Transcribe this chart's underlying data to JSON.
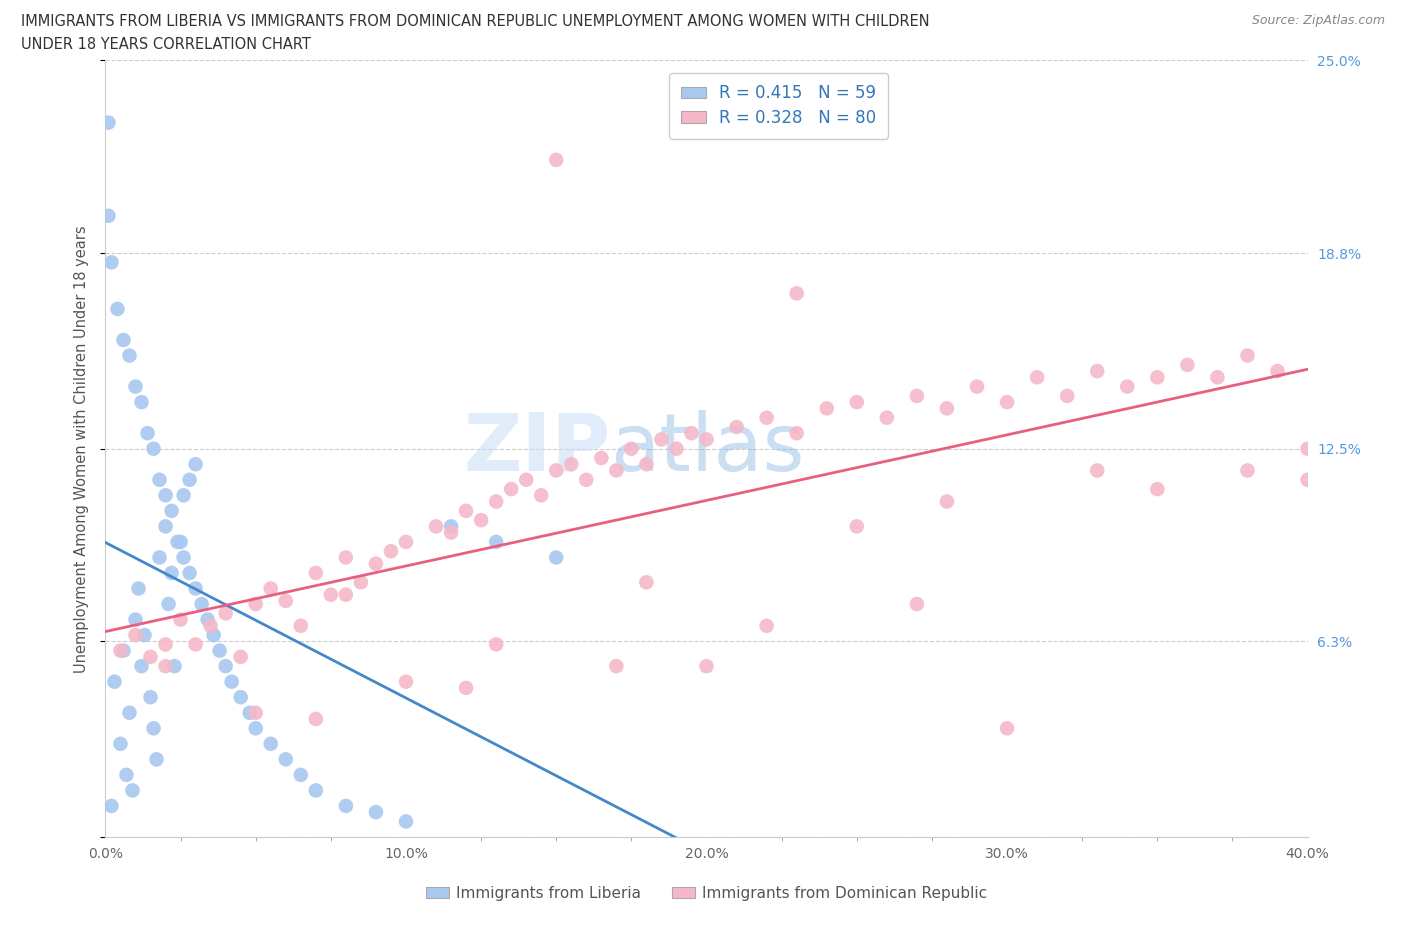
{
  "title_line1": "IMMIGRANTS FROM LIBERIA VS IMMIGRANTS FROM DOMINICAN REPUBLIC UNEMPLOYMENT AMONG WOMEN WITH CHILDREN",
  "title_line2": "UNDER 18 YEARS CORRELATION CHART",
  "source": "Source: ZipAtlas.com",
  "xlabel_bottom": "Immigrants from Liberia",
  "xlabel_bottom2": "Immigrants from Dominican Republic",
  "ylabel": "Unemployment Among Women with Children Under 18 years",
  "xlim": [
    0.0,
    0.4
  ],
  "ylim": [
    0.0,
    0.25
  ],
  "yticks": [
    0.0,
    0.063,
    0.125,
    0.188,
    0.25
  ],
  "ytick_labels": [
    "",
    "6.3%",
    "12.5%",
    "18.8%",
    "25.0%"
  ],
  "xticks": [
    0.0,
    0.1,
    0.2,
    0.3,
    0.4
  ],
  "xtick_labels": [
    "0.0%",
    "10.0%",
    "20.0%",
    "30.0%",
    "40.0%"
  ],
  "liberia_color": "#a8c8f0",
  "dominican_color": "#f4b8c8",
  "liberia_line_color": "#4488cc",
  "dominican_line_color": "#e86080",
  "dashed_line_color": "#aaaaaa",
  "R_liberia": 0.415,
  "N_liberia": 59,
  "R_dominican": 0.328,
  "N_dominican": 80,
  "liberia_x": [
    0.001,
    0.002,
    0.003,
    0.005,
    0.006,
    0.007,
    0.008,
    0.009,
    0.01,
    0.011,
    0.012,
    0.013,
    0.015,
    0.016,
    0.017,
    0.018,
    0.02,
    0.021,
    0.022,
    0.023,
    0.025,
    0.026,
    0.028,
    0.03,
    0.001,
    0.002,
    0.004,
    0.006,
    0.008,
    0.01,
    0.012,
    0.014,
    0.016,
    0.018,
    0.02,
    0.022,
    0.024,
    0.026,
    0.028,
    0.03,
    0.032,
    0.034,
    0.036,
    0.038,
    0.04,
    0.042,
    0.045,
    0.048,
    0.05,
    0.055,
    0.06,
    0.065,
    0.07,
    0.08,
    0.09,
    0.1,
    0.115,
    0.13,
    0.15
  ],
  "liberia_y": [
    0.23,
    0.01,
    0.05,
    0.03,
    0.06,
    0.02,
    0.04,
    0.015,
    0.07,
    0.08,
    0.055,
    0.065,
    0.045,
    0.035,
    0.025,
    0.09,
    0.1,
    0.075,
    0.085,
    0.055,
    0.095,
    0.11,
    0.115,
    0.12,
    0.2,
    0.185,
    0.17,
    0.16,
    0.155,
    0.145,
    0.14,
    0.13,
    0.125,
    0.115,
    0.11,
    0.105,
    0.095,
    0.09,
    0.085,
    0.08,
    0.075,
    0.07,
    0.065,
    0.06,
    0.055,
    0.05,
    0.045,
    0.04,
    0.035,
    0.03,
    0.025,
    0.02,
    0.015,
    0.01,
    0.008,
    0.005,
    0.1,
    0.095,
    0.09
  ],
  "dominican_x": [
    0.005,
    0.01,
    0.015,
    0.02,
    0.025,
    0.03,
    0.035,
    0.04,
    0.045,
    0.05,
    0.055,
    0.06,
    0.065,
    0.07,
    0.075,
    0.08,
    0.085,
    0.09,
    0.095,
    0.1,
    0.11,
    0.115,
    0.12,
    0.125,
    0.13,
    0.135,
    0.14,
    0.145,
    0.15,
    0.155,
    0.16,
    0.165,
    0.17,
    0.175,
    0.18,
    0.185,
    0.19,
    0.195,
    0.2,
    0.21,
    0.22,
    0.23,
    0.24,
    0.25,
    0.26,
    0.27,
    0.28,
    0.29,
    0.3,
    0.31,
    0.32,
    0.33,
    0.34,
    0.35,
    0.36,
    0.37,
    0.38,
    0.39,
    0.4,
    0.05,
    0.1,
    0.15,
    0.2,
    0.25,
    0.3,
    0.35,
    0.4,
    0.08,
    0.13,
    0.18,
    0.23,
    0.28,
    0.33,
    0.38,
    0.02,
    0.07,
    0.12,
    0.17,
    0.22,
    0.27
  ],
  "dominican_y": [
    0.06,
    0.065,
    0.058,
    0.055,
    0.07,
    0.062,
    0.068,
    0.072,
    0.058,
    0.075,
    0.08,
    0.076,
    0.068,
    0.085,
    0.078,
    0.09,
    0.082,
    0.088,
    0.092,
    0.095,
    0.1,
    0.098,
    0.105,
    0.102,
    0.108,
    0.112,
    0.115,
    0.11,
    0.118,
    0.12,
    0.115,
    0.122,
    0.118,
    0.125,
    0.12,
    0.128,
    0.125,
    0.13,
    0.128,
    0.132,
    0.135,
    0.13,
    0.138,
    0.14,
    0.135,
    0.142,
    0.138,
    0.145,
    0.14,
    0.148,
    0.142,
    0.15,
    0.145,
    0.148,
    0.152,
    0.148,
    0.155,
    0.15,
    0.125,
    0.04,
    0.05,
    0.218,
    0.055,
    0.1,
    0.035,
    0.112,
    0.115,
    0.078,
    0.062,
    0.082,
    0.175,
    0.108,
    0.118,
    0.118,
    0.062,
    0.038,
    0.048,
    0.055,
    0.068,
    0.075
  ]
}
